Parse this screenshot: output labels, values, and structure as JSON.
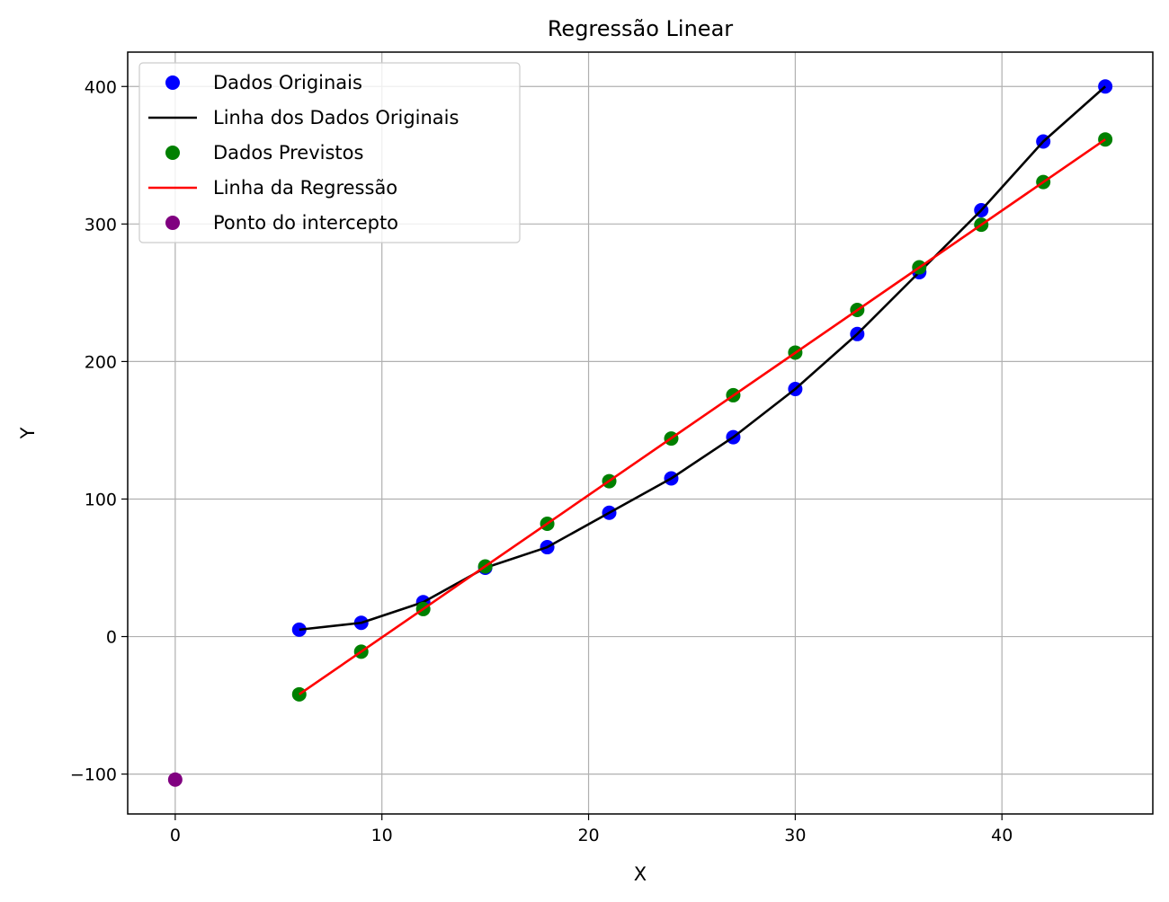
{
  "chart_data": {
    "type": "scatter",
    "title": "Regressão Linear",
    "xlabel": "X",
    "ylabel": "Y",
    "xlim": [
      -2.3,
      47.3
    ],
    "ylim": [
      -129,
      425
    ],
    "xticks": [
      0,
      10,
      20,
      30,
      40
    ],
    "yticks": [
      -100,
      0,
      100,
      200,
      300,
      400
    ],
    "xtick_labels": [
      "0",
      "10",
      "20",
      "30",
      "40"
    ],
    "ytick_labels": [
      "−100",
      "0",
      "100",
      "200",
      "300",
      "400"
    ],
    "grid": true,
    "legend_position": "upper-left",
    "series": [
      {
        "name": "Dados Originais",
        "kind": "scatter",
        "color": "#0000ff",
        "x": [
          6,
          9,
          12,
          15,
          18,
          21,
          24,
          27,
          30,
          33,
          36,
          39,
          42,
          45
        ],
        "y": [
          5,
          10,
          25,
          50,
          65,
          90,
          115,
          145,
          180,
          220,
          265,
          310,
          360,
          400
        ]
      },
      {
        "name": "Linha dos Dados Originais",
        "kind": "line",
        "color": "#000000",
        "x": [
          6,
          9,
          12,
          15,
          18,
          21,
          24,
          27,
          30,
          33,
          36,
          39,
          42,
          45
        ],
        "y": [
          5,
          10,
          25,
          50,
          65,
          90,
          115,
          145,
          180,
          220,
          265,
          310,
          360,
          400
        ]
      },
      {
        "name": "Dados Previstos",
        "kind": "scatter",
        "color": "#008000",
        "x": [
          6,
          9,
          12,
          15,
          18,
          21,
          24,
          27,
          30,
          33,
          36,
          39,
          42,
          45
        ],
        "y": [
          -42,
          -11,
          20,
          51,
          82,
          113,
          144,
          175.5,
          206.5,
          237.5,
          268.5,
          299.5,
          330.5,
          361.5
        ]
      },
      {
        "name": "Linha da Regressão",
        "kind": "line",
        "color": "#ff0000",
        "x": [
          6,
          45
        ],
        "y": [
          -42,
          361.5
        ]
      },
      {
        "name": "Ponto do intercepto",
        "kind": "scatter",
        "color": "#800080",
        "x": [
          0
        ],
        "y": [
          -104
        ]
      }
    ]
  }
}
